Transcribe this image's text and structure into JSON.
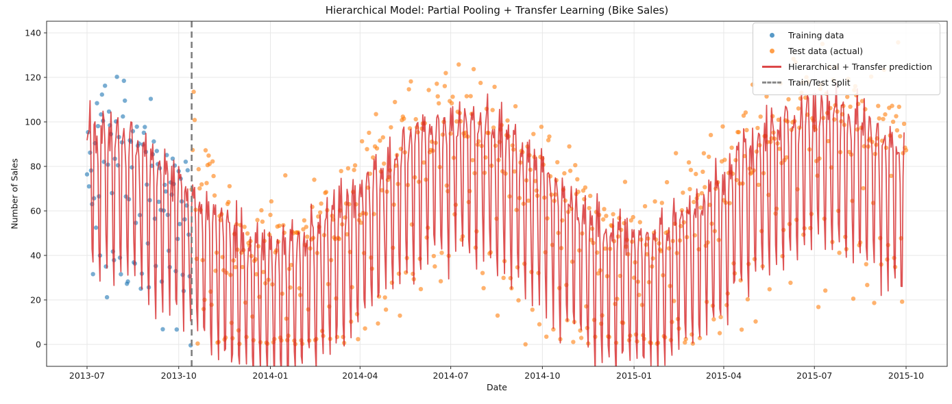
{
  "legend": {
    "items": [
      {
        "label": "Training data",
        "marker": "dot",
        "color": "#1f77b4"
      },
      {
        "label": "Test data (actual)",
        "marker": "dot",
        "color": "#ff7f0e"
      },
      {
        "label": "Hierarchical + Transfer prediction",
        "marker": "line",
        "color": "#d62728"
      },
      {
        "label": "Train/Test Split",
        "marker": "dashed-line",
        "color": "#7f7f7f"
      }
    ],
    "position": "upper right"
  },
  "chart_data": {
    "type": "line+scatter",
    "title": "Hierarchical Model: Partial Pooling + Transfer Learning (Bike Sales)",
    "xlabel": "Date",
    "ylabel": "Number of Sales",
    "x_tick_labels": [
      "2013-07",
      "2013-10",
      "2014-01",
      "2014-04",
      "2014-07",
      "2014-10",
      "2015-01",
      "2015-04",
      "2015-07",
      "2015-10"
    ],
    "x_tick_days": [
      0,
      92,
      184,
      274,
      365,
      457,
      549,
      639,
      730,
      822
    ],
    "y_ticks": [
      0,
      20,
      40,
      60,
      80,
      100,
      120,
      140
    ],
    "ylim": [
      -9.9,
      145.2
    ],
    "xlim_days": [
      -41,
      863
    ],
    "grid": true,
    "split_day": 105,
    "series": [
      {
        "name": "Training data",
        "kind": "scatter",
        "color": "rgba(31,119,180,0.6)",
        "marker_radius": 3.2,
        "day_start": 0,
        "day_end": 104
      },
      {
        "name": "Test data (actual)",
        "kind": "scatter",
        "color": "rgba(255,127,14,0.6)",
        "marker_radius": 3.2,
        "day_start": 105,
        "day_end": 822,
        "clamp_min": 0,
        "boosts": [
          {
            "from": 105,
            "to": 128,
            "add": 22
          },
          {
            "from": 795,
            "to": 822,
            "add": 16
          }
        ]
      },
      {
        "name": "Hierarchical + Transfer prediction",
        "kind": "line",
        "color": "rgba(214,39,40,0.8)",
        "width": 1.8,
        "day_start": 0,
        "day_end": 820
      },
      {
        "name": "Train/Test Split",
        "kind": "vline",
        "color": "#7f7f7f",
        "width": 2.6,
        "dash": "9 6",
        "day": 105
      }
    ],
    "pattern_model": {
      "seasonal_mean": 44,
      "seasonal_amp": 27,
      "period_days": 365.25,
      "seasonal_peak_day": 6,
      "trend_per_day": 0.013,
      "weekly_offsets_mon_to_sun": [
        18,
        28,
        24,
        30,
        14,
        -24,
        -36
      ],
      "line_noise_sd": 5,
      "scatter_noise_sd": 13,
      "rng_seed": 42,
      "observed_envelope": {
        "summer_2013_line_peaks": [
          95,
          110
        ],
        "summer_2013_line_dips": [
          35,
          55
        ],
        "winter_2014_line_peaks": [
          40,
          50
        ],
        "winter_2014_line_dips": [
          -12,
          5
        ],
        "summer_2014_line_peaks": [
          95,
          112
        ],
        "winter_2015_line_dips": [
          -10,
          8
        ],
        "summer_2015_line_peaks": [
          100,
          110
        ],
        "line_end_value": 94,
        "training_scatter_range": [
          28,
          122
        ],
        "test_scatter_range": [
          0,
          138
        ]
      }
    }
  }
}
